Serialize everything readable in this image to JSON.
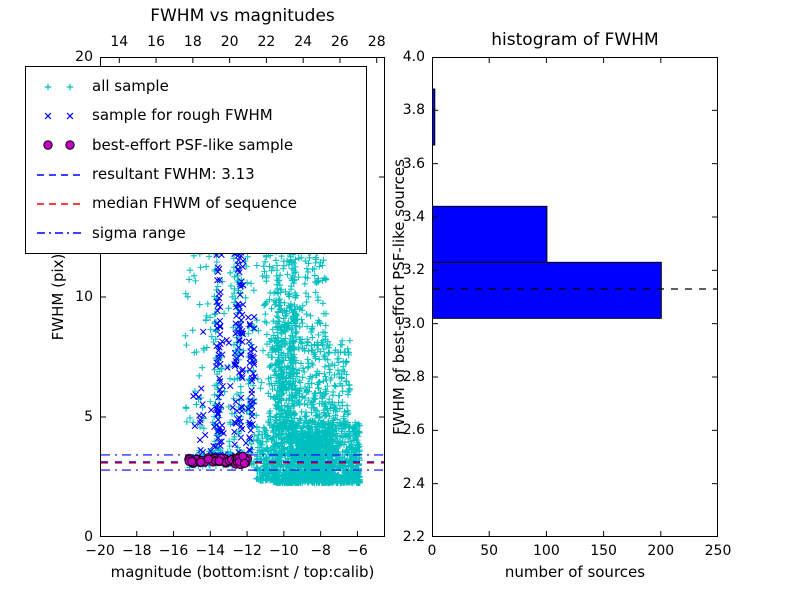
{
  "chart_data": [
    {
      "id": "fwhm-vs-magnitudes",
      "type": "scatter",
      "title": "FWHM vs magnitudes",
      "xlabel": "magnitude (bottom:isnt / top:calib)",
      "ylabel": "FWHM (pix)",
      "xlim": [
        -20,
        -4.5
      ],
      "top_xlim": [
        12.95,
        28.45
      ],
      "ylim": [
        0,
        20
      ],
      "grid": false,
      "legend_position": "upper left",
      "x_ticks": [
        {
          "v": -20,
          "label": "−20"
        },
        {
          "v": -18,
          "label": "−18"
        },
        {
          "v": -16,
          "label": "−16"
        },
        {
          "v": -14,
          "label": "−14"
        },
        {
          "v": -12,
          "label": "−12"
        },
        {
          "v": -10,
          "label": "−10"
        },
        {
          "v": -8,
          "label": "−8"
        },
        {
          "v": -6,
          "label": "−6"
        }
      ],
      "top_x_ticks": [
        {
          "v": 14,
          "label": "14"
        },
        {
          "v": 16,
          "label": "16"
        },
        {
          "v": 18,
          "label": "18"
        },
        {
          "v": 20,
          "label": "20"
        },
        {
          "v": 22,
          "label": "22"
        },
        {
          "v": 24,
          "label": "24"
        },
        {
          "v": 26,
          "label": "26"
        },
        {
          "v": 28,
          "label": "28"
        }
      ],
      "y_ticks": [
        {
          "v": 0,
          "label": "0"
        },
        {
          "v": 5,
          "label": "5"
        },
        {
          "v": 10,
          "label": "10"
        },
        {
          "v": 15,
          "label": "15"
        },
        {
          "v": 20,
          "label": "20"
        }
      ],
      "series": [
        {
          "name": "all sample",
          "marker": "plus",
          "color": "#00bfbf",
          "clusters": [
            {
              "n": 1150,
              "mag": [
                -10.6,
                -5.85
              ],
              "fwhm": [
                2.25,
                4.8
              ],
              "pow": 1.7
            },
            {
              "n": 500,
              "mag": [
                -9.3,
                -7.4
              ],
              "fwhm": [
                2.4,
                4.4
              ],
              "pow": 1.4
            },
            {
              "n": 420,
              "mag": [
                -10.9,
                -6.4
              ],
              "fwhm": [
                4.5,
                8.2
              ],
              "pow": 1.25
            },
            {
              "n": 150,
              "mag": [
                -10.4,
                -9.3
              ],
              "fwhm": [
                4.5,
                9.5
              ],
              "pow": 1.0
            },
            {
              "n": 240,
              "mag": [
                -11.1,
                -7.7
              ],
              "fwhm": [
                7.8,
                13.2
              ],
              "pow": 1.0
            },
            {
              "n": 90,
              "mag": [
                -9.75,
                -9.35
              ],
              "fwhm": [
                3.0,
                12.0
              ],
              "pow": 1.0
            },
            {
              "n": 70,
              "mag": [
                -10.45,
                -10.1
              ],
              "fwhm": [
                3.0,
                11.0
              ],
              "pow": 1.0
            },
            {
              "n": 150,
              "mag": [
                -15.4,
                -11.0
              ],
              "fwhm": [
                2.9,
                12.6
              ],
              "pow": 1.15
            },
            {
              "n": 45,
              "mag": [
                -13.8,
                -13.4
              ],
              "fwhm": [
                3.0,
                11.5
              ],
              "pow": 1.0
            },
            {
              "n": 45,
              "mag": [
                -12.75,
                -12.3
              ],
              "fwhm": [
                3.0,
                12.5
              ],
              "pow": 1.0
            },
            {
              "n": 30,
              "mag": [
                -11.95,
                -11.6
              ],
              "fwhm": [
                3.0,
                9.0
              ],
              "pow": 1.0
            },
            {
              "n": 130,
              "mag": [
                -11.5,
                -10.55
              ],
              "fwhm": [
                2.35,
                4.6
              ],
              "pow": 1.5
            },
            {
              "n": 60,
              "mag": [
                -14.9,
                -12.1
              ],
              "fwhm": [
                2.95,
                3.6
              ],
              "pow": 1.2
            }
          ]
        },
        {
          "name": "sample for rough FWHM",
          "marker": "x",
          "color": "#0000ff",
          "clusters": [
            {
              "n": 55,
              "mag": [
                -13.7,
                -13.35
              ],
              "fwhm": [
                3.2,
                11.8
              ],
              "pow": 0.85
            },
            {
              "n": 80,
              "mag": [
                -12.7,
                -12.2
              ],
              "fwhm": [
                3.2,
                13.2
              ],
              "pow": 0.9
            },
            {
              "n": 35,
              "mag": [
                -11.95,
                -11.6
              ],
              "fwhm": [
                3.2,
                9.2
              ],
              "pow": 1.0
            },
            {
              "n": 32,
              "mag": [
                -14.6,
                -11.55
              ],
              "fwhm": [
                3.0,
                10.0
              ],
              "pow": 1.2
            },
            {
              "n": 14,
              "mag": [
                -14.95,
                -14.35
              ],
              "fwhm": [
                3.1,
                6.2
              ],
              "pow": 1.0
            }
          ]
        },
        {
          "name": "best-effort PSF-like sample",
          "marker": "circle",
          "color": "#bf00bf",
          "edge": "#1a001a",
          "clusters": [
            {
              "n": 50,
              "mag": [
                -15.2,
                -12.1
              ],
              "fwhm": [
                3.06,
                3.3
              ],
              "pow": 1.0
            },
            {
              "n": 22,
              "mag": [
                -12.65,
                -11.95
              ],
              "fwhm": [
                3.0,
                3.38
              ],
              "pow": 1.0
            }
          ]
        }
      ],
      "hlines": [
        {
          "name": "resultant FWHM",
          "y": 3.13,
          "style": "dashed",
          "color": "#0000ff"
        },
        {
          "name": "median FHWM of sequence",
          "y": 3.08,
          "style": "dashed",
          "color": "#ff0000"
        },
        {
          "name": "sigma range low",
          "y": 2.79,
          "style": "dashdot",
          "color": "#0000ff"
        },
        {
          "name": "sigma range high",
          "y": 3.42,
          "style": "dashdot",
          "color": "#0000ff"
        }
      ],
      "legend": [
        {
          "label": "all sample",
          "type": "scatter",
          "marker": "plus",
          "color": "#00bfbf"
        },
        {
          "label": "sample for rough FWHM",
          "type": "scatter",
          "marker": "x",
          "color": "#0000ff"
        },
        {
          "label": "best-effort PSF-like sample",
          "type": "scatter",
          "marker": "circle",
          "color": "#bf00bf"
        },
        {
          "label": "resultant FWHM: 3.13",
          "type": "line",
          "dash": "dashed",
          "color": "#0000ff"
        },
        {
          "label": "median FHWM of sequence",
          "type": "line",
          "dash": "dashed",
          "color": "#ff0000"
        },
        {
          "label": "sigma range",
          "type": "line",
          "dash": "dashdot",
          "color": "#0000ff"
        }
      ]
    },
    {
      "id": "histogram-of-fwhm",
      "type": "bar",
      "orientation": "horizontal",
      "title": "histogram of FWHM",
      "xlabel": "number of sources",
      "ylabel": "FWHM of best-effort PSF-like sources",
      "xlim": [
        0,
        250
      ],
      "ylim": [
        2.2,
        4.0
      ],
      "grid": false,
      "bar_color": "#0000ff",
      "x_ticks": [
        {
          "v": 0,
          "label": "0"
        },
        {
          "v": 50,
          "label": "50"
        },
        {
          "v": 100,
          "label": "100"
        },
        {
          "v": 150,
          "label": "150"
        },
        {
          "v": 200,
          "label": "200"
        },
        {
          "v": 250,
          "label": "250"
        }
      ],
      "y_ticks": [
        {
          "v": 2.2,
          "label": "2.2"
        },
        {
          "v": 2.4,
          "label": "2.4"
        },
        {
          "v": 2.6,
          "label": "2.6"
        },
        {
          "v": 2.8,
          "label": "2.8"
        },
        {
          "v": 3.0,
          "label": "3.0"
        },
        {
          "v": 3.2,
          "label": "3.2"
        },
        {
          "v": 3.4,
          "label": "3.4"
        },
        {
          "v": 3.6,
          "label": "3.6"
        },
        {
          "v": 3.8,
          "label": "3.8"
        },
        {
          "v": 4.0,
          "label": "4.0"
        }
      ],
      "bins": [
        {
          "range": [
            3.02,
            3.23
          ],
          "count": 200
        },
        {
          "range": [
            3.23,
            3.44
          ],
          "count": 100
        },
        {
          "range": [
            3.67,
            3.88
          ],
          "count": 2
        }
      ],
      "marker_line": {
        "name": "resultant FWHM",
        "y": 3.13,
        "style": "dashed",
        "color": "#000000"
      }
    }
  ]
}
